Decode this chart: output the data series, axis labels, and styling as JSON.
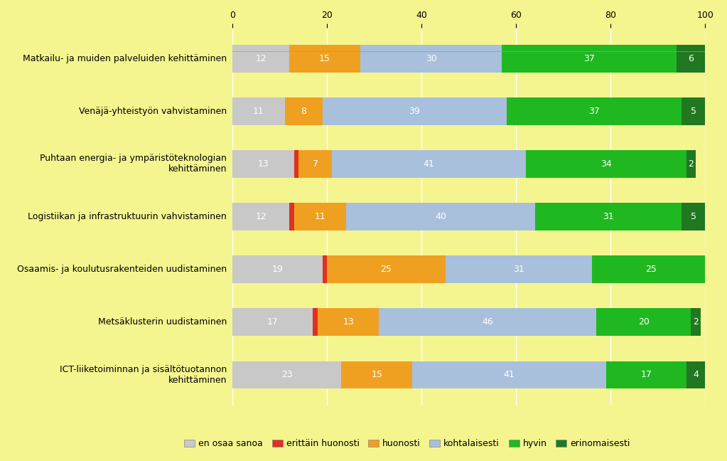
{
  "categories": [
    "Matkailu- ja muiden palveluiden kehittäminen",
    "Venäjä-yhteistyön vahvistaminen",
    "Puhtaan energia- ja ympäristöteknologian\nkehittäminen",
    "Logistiikan ja infrastruktuurin vahvistaminen",
    "Osaamis- ja koulutusrakenteiden uudistaminen",
    "Metsäklusterin uudistaminen",
    "ICT-liiketoiminnan ja sisältötuotannon\nkehittäminen"
  ],
  "series": {
    "en osaa sanoa": [
      12,
      11,
      13,
      12,
      19,
      17,
      23
    ],
    "erittäin huonosti": [
      0,
      0,
      1,
      1,
      1,
      1,
      0
    ],
    "huonosti": [
      15,
      8,
      7,
      11,
      25,
      13,
      15
    ],
    "kohtalaisesti": [
      30,
      39,
      41,
      40,
      31,
      46,
      41
    ],
    "hyvin": [
      37,
      37,
      34,
      31,
      25,
      20,
      17
    ],
    "erinomaisesti": [
      6,
      5,
      2,
      5,
      0,
      2,
      4
    ]
  },
  "colors": {
    "en osaa sanoa": "#c8c8c8",
    "erittäin huonosti": "#e03020",
    "huonosti": "#f0a020",
    "kohtalaisesti": "#a8c0dc",
    "hyvin": "#20b820",
    "erinomaisesti": "#207820"
  },
  "legend_order": [
    "en osaa sanoa",
    "erittäin huonosti",
    "huonosti",
    "kohtalaisesti",
    "hyvin",
    "erinomaisesti"
  ],
  "xlim": [
    0,
    100
  ],
  "xticks": [
    0,
    20,
    40,
    60,
    80,
    100
  ],
  "background_color": "#f5f590",
  "bar_height": 0.52,
  "fontsize_labels": 9,
  "fontsize_yticks": 9,
  "fontsize_xticks": 9,
  "fontsize_legend": 9
}
